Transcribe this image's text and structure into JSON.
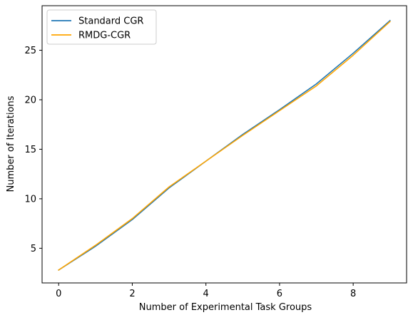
{
  "chart_data": {
    "type": "line",
    "xlabel": "Number of Experimental Task Groups",
    "ylabel": "Number of Iterations",
    "x": [
      0,
      1,
      2,
      3,
      4,
      5,
      6,
      7,
      8,
      9
    ],
    "xlim": [
      -0.45,
      9.45
    ],
    "ylim": [
      1.5,
      29.5
    ],
    "xticks": [
      0,
      2,
      4,
      6,
      8
    ],
    "yticks": [
      5,
      10,
      15,
      20,
      25
    ],
    "grid": false,
    "legend_position": "top-left",
    "series": [
      {
        "name": "Standard CGR",
        "color": "#1f77b4",
        "values": [
          2.8,
          5.2,
          7.9,
          11.1,
          13.8,
          16.5,
          19.0,
          21.6,
          24.7,
          28.0
        ]
      },
      {
        "name": "RMDG-CGR",
        "color": "#ffa500",
        "values": [
          2.8,
          5.3,
          8.0,
          11.2,
          13.8,
          16.4,
          18.9,
          21.4,
          24.5,
          27.9
        ]
      }
    ]
  }
}
